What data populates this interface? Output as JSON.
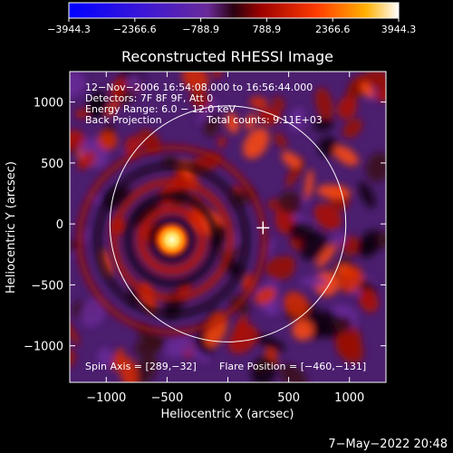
{
  "chart_data": {
    "type": "heatmap",
    "title": "Reconstructed RHESSI Image",
    "xlabel": "Heliocentric X (arcsec)",
    "ylabel": "Heliocentric Y (arcsec)",
    "xlim": [
      -1300,
      1300
    ],
    "ylim": [
      -1300,
      1250
    ],
    "x_ticks": [
      -1000,
      -500,
      0,
      500,
      1000
    ],
    "y_ticks": [
      -1000,
      -500,
      0,
      500,
      1000
    ],
    "colorbar": {
      "range": [
        -3944.3,
        3944.3
      ],
      "tick_values": [
        -3944.3,
        -2366.6,
        -788.9,
        788.9,
        2366.6,
        3944.3
      ],
      "tick_labels": [
        "−3944.3",
        "−2366.6",
        "−788.9",
        "788.9",
        "2366.6",
        "3944.3"
      ]
    },
    "info_lines": [
      "12−Nov−2006 16:54:08.000 to 16:56:44.000",
      "Detectors: 7F 8F 9F, Att 0",
      "Energy Range: 6.0 − 12.0 keV",
      "Back Projection"
    ],
    "total_counts": "Total counts: 9.11E+03",
    "spin_axis": "Spin Axis = [289,−32]",
    "flare_position": "Flare Position = [−460,−131]",
    "flare_xy": [
      -460,
      -131
    ],
    "cross_xy": [
      289,
      -32
    ],
    "limb_radius": 970,
    "timestamp": "7−May−2022 20:48"
  }
}
